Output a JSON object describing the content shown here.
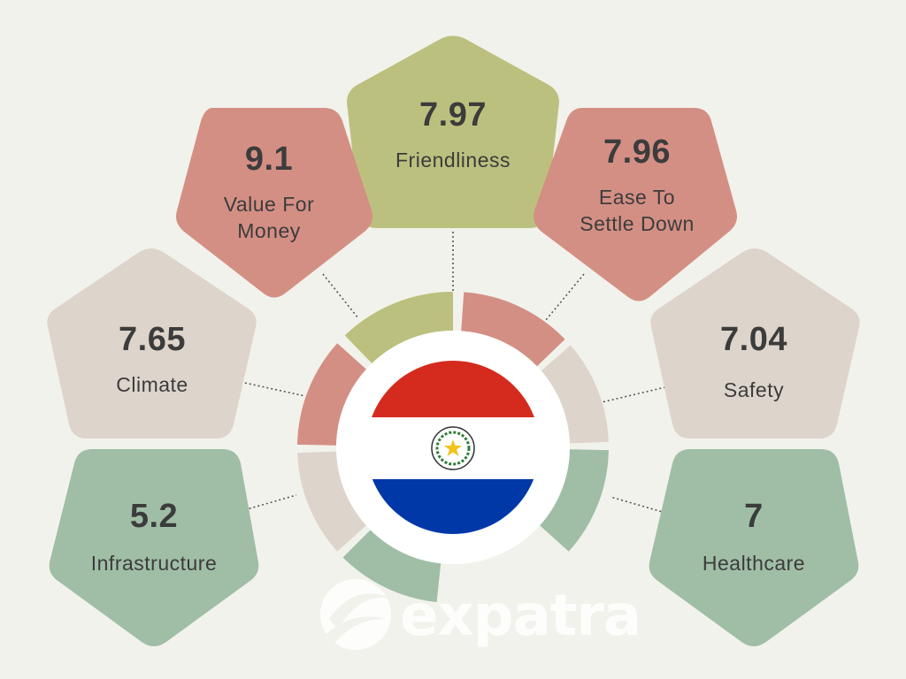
{
  "metrics": [
    {
      "id": "friendliness",
      "value": "7.97",
      "label": "Friendliness",
      "color": "#bcc07e"
    },
    {
      "id": "value-for-money",
      "value": "9.1",
      "label": "Value For\nMoney",
      "color": "#d48f84"
    },
    {
      "id": "ease-to-settle-down",
      "value": "7.96",
      "label": "Ease To\nSettle Down",
      "color": "#d48f84"
    },
    {
      "id": "climate",
      "value": "7.65",
      "label": "Climate",
      "color": "#ddd4cb"
    },
    {
      "id": "safety",
      "value": "7.04",
      "label": "Safety",
      "color": "#ddd4cb"
    },
    {
      "id": "infrastructure",
      "value": "5.2",
      "label": "Infrastructure",
      "color": "#a0bea6"
    },
    {
      "id": "healthcare",
      "value": "7",
      "label": "Healthcare",
      "color": "#a0bea6"
    }
  ],
  "flag": {
    "top_color": "#d52b1e",
    "middle_color": "#ffffff",
    "bottom_color": "#0038a8",
    "emblem_text": "REPUBLICA DEL PARAGUAY"
  },
  "logo": {
    "text": "expatra",
    "icon": "expatra-logo-icon"
  }
}
